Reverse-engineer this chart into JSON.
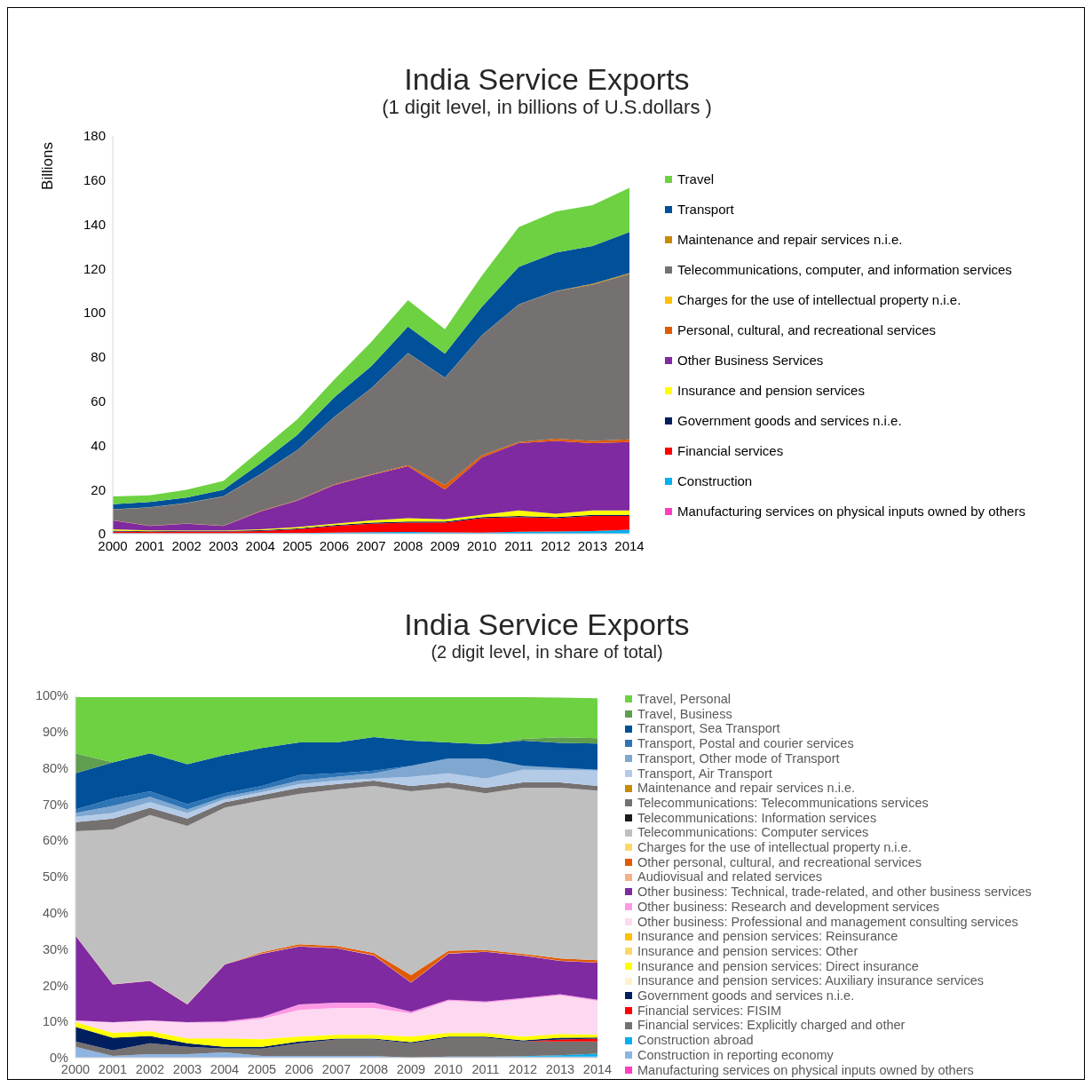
{
  "chart_data": [
    {
      "type": "area",
      "title": "India Service Exports",
      "subtitle": "(1 digit level, in billions of U.S.dollars )",
      "ylabel": "Billions",
      "stacked": true,
      "legend": "right",
      "ylim": [
        0,
        180
      ],
      "yticks": [
        0,
        20,
        40,
        60,
        80,
        100,
        120,
        140,
        160,
        180
      ],
      "categories": [
        "2000",
        "2001",
        "2002",
        "2003",
        "2004",
        "2005",
        "2006",
        "2007",
        "2008",
        "2009",
        "2010",
        "2011",
        "2012",
        "2013",
        "2014"
      ],
      "series": [
        {
          "name": "Manufacturing services on physical inputs owned by others",
          "color": "#ff3fbf",
          "values": [
            null,
            null,
            null,
            null,
            null,
            null,
            null,
            null,
            null,
            null,
            null,
            null,
            null,
            null,
            null
          ]
        },
        {
          "name": "Construction",
          "color": "#00b0f0",
          "values": [
            0.3,
            0.2,
            0.2,
            0.2,
            0.3,
            0.3,
            0.5,
            0.7,
            0.8,
            0.6,
            0.5,
            0.9,
            1,
            1.2,
            1.8
          ]
        },
        {
          "name": "Financial services",
          "color": "#ff0000",
          "values": [
            0.7,
            0.6,
            0.8,
            0.8,
            0.9,
            1.7,
            3,
            3.8,
            4.2,
            4.4,
            6.5,
            6.6,
            6,
            6.8,
            6.2
          ]
        },
        {
          "name": "Government goods and services n.i.e.",
          "color": "#001f5f",
          "values": [
            0.4,
            0.3,
            0.3,
            0.3,
            0.4,
            0.4,
            0.4,
            0.5,
            0.5,
            0.5,
            0.5,
            0.5,
            0.5,
            0.5,
            0.5
          ]
        },
        {
          "name": "Insurance and pension services",
          "color": "#ffff00",
          "values": [
            0.6,
            0.4,
            0.2,
            0.2,
            0.4,
            0.6,
            0.6,
            1,
            1.5,
            1,
            1,
            2.5,
            1.5,
            2,
            2
          ]
        },
        {
          "name": "Other Business Services",
          "color": "#7f2aa0",
          "values": [
            4,
            2,
            3,
            2,
            8,
            12,
            17.5,
            20.5,
            23.5,
            13.5,
            26,
            30.5,
            33,
            30.5,
            31
          ]
        },
        {
          "name": "Personal, cultural, and recreational services",
          "color": "#e05a00",
          "values": [
            0.1,
            0.1,
            0.1,
            0.1,
            0.2,
            0.2,
            0.3,
            0.3,
            0.5,
            2,
            1,
            0.5,
            1,
            1,
            1.2
          ]
        },
        {
          "name": "Charges for the use of intellectual property n.i.e.",
          "color": "#ffc000",
          "values": [
            null,
            null,
            null,
            null,
            null,
            null,
            null,
            null,
            null,
            null,
            null,
            null,
            null,
            null,
            null
          ]
        },
        {
          "name": "Telecommunications, computer, and information services",
          "color": "#767171",
          "values": [
            4.8,
            8.3,
            9.3,
            13.3,
            16.6,
            22.5,
            30.4,
            38.9,
            50.7,
            48.5,
            54.2,
            62.2,
            66.7,
            70.7,
            74.8
          ]
        },
        {
          "name": "Maintenance and repair services n.i.e.",
          "color": "#c88a00",
          "values": [
            0.1,
            0.1,
            0.1,
            0.1,
            0.1,
            0.1,
            0.1,
            0.1,
            0.1,
            0.1,
            0.1,
            0.1,
            0.1,
            0.4,
            0.4
          ]
        },
        {
          "name": "Transport",
          "color": "#00509a",
          "values": [
            2.4,
            2.4,
            2.4,
            2.9,
            4.9,
            6.9,
            8.9,
            9.9,
            11.9,
            10.9,
            12.9,
            16.9,
            17.4,
            17.1,
            18.6
          ]
        },
        {
          "name": "Travel",
          "color": "#6dd142",
          "values": [
            3.5,
            3,
            3.5,
            4,
            6,
            7,
            8,
            11,
            12,
            11,
            14,
            18,
            18.5,
            18.5,
            20
          ]
        }
      ]
    },
    {
      "type": "area",
      "title": "India Service Exports",
      "subtitle": "(2 digit level,  in share of total)",
      "stacked": true,
      "legend": "right",
      "ylim": [
        0,
        100
      ],
      "yticks": [
        {
          "value": 0,
          "label": "0%"
        },
        {
          "value": 10,
          "label": "10%"
        },
        {
          "value": 20,
          "label": "20%"
        },
        {
          "value": 30,
          "label": "30%"
        },
        {
          "value": 40,
          "label": "40%"
        },
        {
          "value": 50,
          "label": "50%"
        },
        {
          "value": 60,
          "label": "60%"
        },
        {
          "value": 70,
          "label": "70%"
        },
        {
          "value": 80,
          "label": "80%"
        },
        {
          "value": 90,
          "label": "90%"
        },
        {
          "value": 100,
          "label": "100%"
        }
      ],
      "categories": [
        "2000",
        "2001",
        "2002",
        "2003",
        "2004",
        "2005",
        "2006",
        "2007",
        "2008",
        "2009",
        "2010",
        "2011",
        "2012",
        "2013",
        "2014"
      ],
      "series": [
        {
          "name": "Manufacturing services on physical inputs owned by others",
          "color": "#ff3fbf",
          "values": [
            null,
            null,
            null,
            null,
            null,
            null,
            null,
            null,
            null,
            null,
            null,
            null,
            null,
            null,
            null
          ]
        },
        {
          "name": "Construction in reporting economy",
          "color": "#8db4e2",
          "values": [
            3,
            0.5,
            1,
            1,
            1.5,
            0.5,
            0.5,
            0.5,
            0.5,
            0,
            0.3,
            0.3,
            0.3,
            0.3,
            0.3
          ]
        },
        {
          "name": "Construction abroad",
          "color": "#00b0f0",
          "values": [
            null,
            null,
            null,
            null,
            null,
            null,
            null,
            null,
            null,
            null,
            null,
            0,
            0.1,
            0.4,
            0.8
          ]
        },
        {
          "name": "Financial services: Explicitly charged and other",
          "color": "#767171",
          "values": [
            1.5,
            1.5,
            3,
            2,
            1,
            2,
            3.5,
            4.5,
            4.5,
            4,
            5.2,
            5.2,
            4.1,
            3.8,
            3.4
          ]
        },
        {
          "name": "Financial services: FISIM",
          "color": "#ff0000",
          "values": [
            null,
            null,
            null,
            null,
            null,
            null,
            null,
            null,
            null,
            null,
            null,
            null,
            0,
            0.5,
            0.8
          ]
        },
        {
          "name": "Government goods and services n.i.e.",
          "color": "#001f5f",
          "values": [
            4,
            3.5,
            2,
            1,
            0.5,
            0.5,
            0.5,
            0.3,
            0.3,
            0.3,
            0.3,
            0.3,
            0.3,
            0.5,
            0.3
          ]
        },
        {
          "name": "Insurance and pension services: Auxiliary insurance services",
          "color": "#fff2cc",
          "values": [
            null,
            null,
            null,
            null,
            null,
            null,
            null,
            null,
            null,
            null,
            null,
            null,
            null,
            null,
            null
          ]
        },
        {
          "name": "Insurance and pension services: Direct insurance",
          "color": "#ffff00",
          "values": [
            1.3,
            1.3,
            1.3,
            1.3,
            2.3,
            2.1,
            1.3,
            1,
            1,
            1.5,
            1,
            1,
            1,
            1,
            0.7
          ]
        },
        {
          "name": "Insurance and pension services: Other",
          "color": "#ffd966",
          "values": [
            0.1,
            0.1,
            0.1,
            0.1,
            0.1,
            0.1,
            0.1,
            0.1,
            0.1,
            0.1,
            0.1,
            0.1,
            0.1,
            0.1,
            0.1
          ]
        },
        {
          "name": "Insurance and pension services: Reinsurance",
          "color": "#ffc000",
          "values": [
            null,
            null,
            null,
            null,
            null,
            null,
            null,
            null,
            null,
            null,
            null,
            null,
            null,
            null,
            null
          ]
        },
        {
          "name": "Other business: Professional and management consulting services",
          "color": "#fdd9f1",
          "values": [
            0.3,
            2.8,
            2.8,
            4.3,
            4.3,
            5.5,
            7.3,
            7.3,
            7.3,
            6.3,
            8.8,
            8.3,
            10.3,
            10.6,
            9.3
          ]
        },
        {
          "name": "Other business: Research and development services",
          "color": "#ff99e6",
          "values": [
            0.1,
            0.1,
            0.1,
            0.1,
            0.3,
            0.5,
            1.5,
            1.5,
            1.5,
            0.5,
            0.3,
            0.3,
            0.3,
            0.3,
            0.3
          ]
        },
        {
          "name": "Other business: Technical, trade-related, and other business services",
          "color": "#7f2aa0",
          "values": [
            23.4,
            10.4,
            10.9,
            4.9,
            15.7,
            17.5,
            16,
            15,
            13,
            8,
            12.7,
            13.7,
            11.7,
            9.2,
            10.2
          ]
        },
        {
          "name": "Audiovisual and related services",
          "color": "#f8b08a",
          "values": [
            0.1,
            0.1,
            0.1,
            0.1,
            0.1,
            0.1,
            0.1,
            0.1,
            0.1,
            0.1,
            0.1,
            0.1,
            0.1,
            0.1,
            0.1
          ]
        },
        {
          "name": "Other personal, cultural, and recreational services",
          "color": "#e05a00",
          "values": [
            null,
            null,
            null,
            null,
            0,
            0.3,
            0.5,
            0.5,
            0.6,
            2,
            0.7,
            0.4,
            0.4,
            0.6,
            0.6
          ]
        },
        {
          "name": "Charges for the use of intellectual property n.i.e.",
          "color": "#ffd966",
          "values": [
            null,
            null,
            null,
            null,
            null,
            null,
            null,
            null,
            null,
            null,
            null,
            null,
            null,
            null,
            null
          ]
        },
        {
          "name": "Telecommunications: Computer services",
          "color": "#bfbfbf",
          "values": [
            28.7,
            42.7,
            45.7,
            49.2,
            43.2,
            41.9,
            41.5,
            43.2,
            46.1,
            50.7,
            45,
            43.3,
            45.8,
            47.1,
            46.8
          ]
        },
        {
          "name": "Telecommunications: Information services",
          "color": "#1a1a1a",
          "values": [
            null,
            null,
            null,
            null,
            null,
            null,
            null,
            null,
            null,
            null,
            null,
            null,
            null,
            null,
            null
          ]
        },
        {
          "name": "Telecommunications: Telecommunications services",
          "color": "#767171",
          "values": [
            2.5,
            3,
            2,
            2,
            1.5,
            1.5,
            1.7,
            1.5,
            1.5,
            1.5,
            1.5,
            1.5,
            1.5,
            1.5,
            1.3
          ]
        },
        {
          "name": "Maintenance and repair services n.i.e.",
          "color": "#c88a00",
          "values": [
            null,
            null,
            null,
            null,
            null,
            null,
            null,
            null,
            null,
            null,
            null,
            null,
            null,
            null,
            null
          ]
        },
        {
          "name": "Transport, Air Transport",
          "color": "#b4cbe8",
          "values": [
            1.5,
            1.5,
            1.5,
            1.5,
            0.8,
            0.8,
            1,
            1,
            0.5,
            2.5,
            2.5,
            2.5,
            3.5,
            3.4,
            4.2
          ]
        },
        {
          "name": "Transport, Other mode of Transport",
          "color": "#7fa7d0",
          "values": [
            1,
            2,
            1.5,
            1,
            0.7,
            0.7,
            1,
            1,
            1.5,
            3,
            4,
            5.5,
            1,
            0.5,
            0.2
          ]
        },
        {
          "name": "Transport, Postal and courier services",
          "color": "#2e75b6",
          "values": [
            1,
            2,
            1.5,
            1.5,
            1,
            1,
            1.5,
            1,
            0.7,
            0.1,
            0.1,
            0.1,
            0.1,
            0.1,
            0.1
          ]
        },
        {
          "name": "Transport, Sea Transport",
          "color": "#00509a",
          "values": [
            10,
            10,
            10.5,
            11,
            10.5,
            10.5,
            9,
            8.5,
            9.3,
            6.9,
            4.4,
            3.9,
            6.9,
            6.9,
            7.2
          ]
        },
        {
          "name": "Travel, Business",
          "color": "#5f9e4f",
          "values": [
            5.5,
            0,
            null,
            null,
            null,
            null,
            null,
            null,
            null,
            null,
            null,
            0,
            0.5,
            1.5,
            1.5
          ]
        },
        {
          "name": "Travel, Personal",
          "color": "#6dd142",
          "values": [
            15.5,
            18,
            15.5,
            18.5,
            16,
            14,
            12.5,
            12.5,
            11,
            12,
            12.5,
            13,
            11.5,
            11,
            11
          ]
        }
      ]
    }
  ]
}
